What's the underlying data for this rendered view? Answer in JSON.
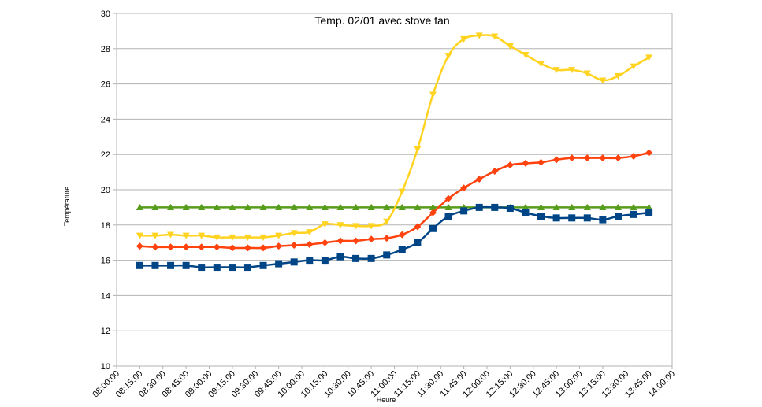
{
  "chart_data": {
    "type": "line",
    "title": "Temp. 02/01 avec stove fan",
    "x_label": "Heure",
    "y_label": "Température",
    "x": [
      "08:15:00",
      "08:25:00",
      "08:35:00",
      "08:45:00",
      "08:55:00",
      "09:05:00",
      "09:15:00",
      "09:25:00",
      "09:35:00",
      "09:45:00",
      "09:55:00",
      "10:05:00",
      "10:15:00",
      "10:25:00",
      "10:35:00",
      "10:45:00",
      "10:55:00",
      "11:05:00",
      "11:15:00",
      "11:25:00",
      "11:35:00",
      "11:45:00",
      "11:55:00",
      "12:05:00",
      "12:15:00",
      "12:25:00",
      "12:35:00",
      "12:45:00",
      "12:55:00",
      "13:05:00",
      "13:15:00",
      "13:25:00",
      "13:35:00",
      "13:45:00"
    ],
    "series": [
      {
        "color": "#579d1c",
        "marker": "triangle-up",
        "values": [
          19,
          19,
          19,
          19,
          19,
          19,
          19,
          19,
          19,
          19,
          19,
          19,
          19,
          19,
          19,
          19,
          19,
          19,
          19,
          19,
          19,
          19,
          19,
          19,
          19,
          19,
          19,
          19,
          19,
          19,
          19,
          19,
          19,
          19
        ]
      },
      {
        "color": "#ffd320",
        "marker": "triangle-down",
        "values": [
          17.4,
          17.4,
          17.45,
          17.4,
          17.4,
          17.3,
          17.3,
          17.3,
          17.3,
          17.4,
          17.55,
          17.6,
          18.05,
          18.0,
          17.95,
          17.95,
          18.2,
          19.9,
          22.3,
          25.4,
          27.6,
          28.55,
          28.75,
          28.7,
          28.15,
          27.65,
          27.15,
          26.8,
          26.8,
          26.6,
          26.2,
          26.45,
          27.0,
          27.5
        ]
      },
      {
        "color": "#ff420e",
        "marker": "diamond",
        "values": [
          16.8,
          16.75,
          16.75,
          16.75,
          16.75,
          16.75,
          16.7,
          16.7,
          16.7,
          16.8,
          16.85,
          16.9,
          17.0,
          17.1,
          17.1,
          17.2,
          17.25,
          17.45,
          17.9,
          18.7,
          19.5,
          20.1,
          20.6,
          21.05,
          21.4,
          21.5,
          21.55,
          21.7,
          21.8,
          21.8,
          21.8,
          21.8,
          21.9,
          22.1
        ]
      },
      {
        "color": "#004586",
        "marker": "square",
        "values": [
          15.7,
          15.7,
          15.7,
          15.7,
          15.6,
          15.6,
          15.6,
          15.6,
          15.7,
          15.8,
          15.9,
          16.0,
          16.0,
          16.2,
          16.1,
          16.1,
          16.3,
          16.6,
          17.0,
          17.8,
          18.5,
          18.8,
          19.0,
          19.0,
          18.95,
          18.7,
          18.5,
          18.4,
          18.4,
          18.4,
          18.3,
          18.5,
          18.6,
          18.7
        ]
      }
    ],
    "xlim": [
      "08:00:00",
      "14:00:00"
    ],
    "xticks": [
      "08:00:00",
      "08:15:00",
      "08:30:00",
      "08:45:00",
      "09:00:00",
      "09:15:00",
      "09:30:00",
      "09:45:00",
      "10:00:00",
      "10:15:00",
      "10:30:00",
      "10:45:00",
      "11:00:00",
      "11:15:00",
      "11:30:00",
      "11:45:00",
      "12:00:00",
      "12:15:00",
      "12:30:00",
      "12:45:00",
      "13:00:00",
      "13:15:00",
      "13:30:00",
      "13:45:00",
      "14:00:00"
    ],
    "ylim": [
      10,
      30
    ],
    "yticks": [
      10,
      12,
      14,
      16,
      18,
      20,
      22,
      24,
      26,
      28,
      30
    ],
    "grid": true,
    "smooth": true
  }
}
